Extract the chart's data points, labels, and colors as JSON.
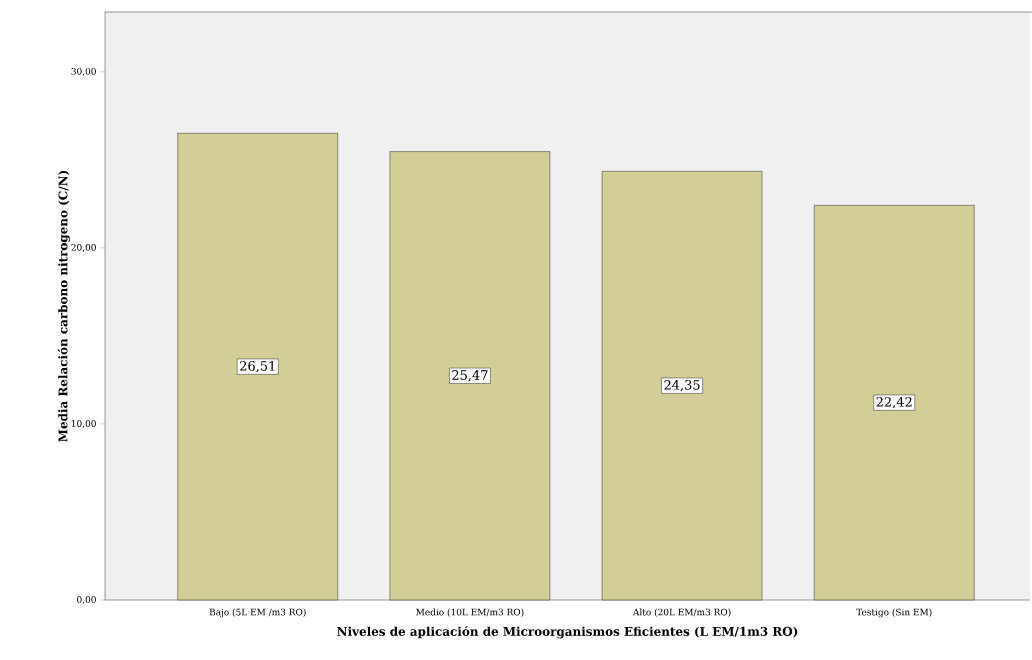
{
  "chart_data": {
    "type": "bar",
    "xlabel": "Niveles de aplicación de Microorganismos Eficientes (L EM/1m3 RO)",
    "ylabel": "Media Relación carbono nitrogeno (C/N)",
    "categories": [
      "Bajo (5L EM /m3 RO)",
      "Medio (10L EM/m3 RO)",
      "Alto (20L EM/m3 RO)",
      "Testigo (Sin EM)"
    ],
    "values": [
      26.51,
      25.47,
      24.35,
      22.42
    ],
    "value_labels": [
      "26,51",
      "25,47",
      "24,35",
      "22,42"
    ],
    "color": "#d3ce97",
    "ylim": [
      0,
      33.4
    ],
    "yticks": [
      {
        "value": 0,
        "label": "0,00"
      },
      {
        "value": 10,
        "label": "10,00"
      },
      {
        "value": 20,
        "label": "20,00"
      },
      {
        "value": 30,
        "label": "30,00"
      }
    ],
    "grid": false
  }
}
